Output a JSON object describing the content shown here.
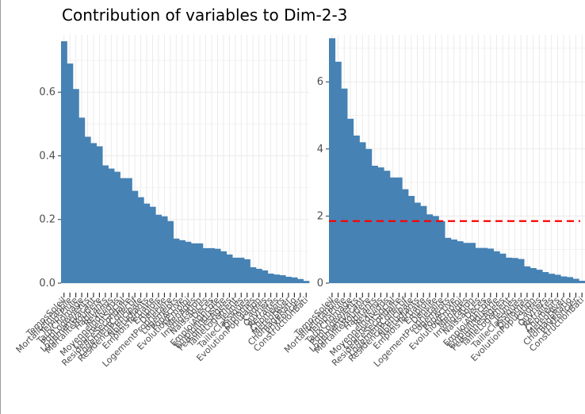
{
  "page": {
    "title": "Contribution of variables to Dim-2-3"
  },
  "colors": {
    "bar": "#4682B4",
    "grid": "#ebebeb",
    "reference_line": "#ff0000",
    "tick_text": "#4d4d4d"
  },
  "chart_data": [
    {
      "type": "bar",
      "title": "",
      "xlabel": "",
      "ylabel": "",
      "ylim": [
        0,
        0.78
      ],
      "y_ticks": [
        0.0,
        0.2,
        0.4,
        0.6
      ],
      "y_tick_labels": [
        "0.0",
        "0.2",
        "0.4",
        "0.6"
      ],
      "grid": true,
      "sorted": "descending",
      "categories": [
        "TempsSoleil",
        "MortaliteInfantile",
        "TempsPluie",
        "TauxChomage",
        "PopLogements",
        "LogementVacant",
        "MortaliteRoutiere",
        "Habitants",
        "Revenus",
        "MoyenneIndividus",
        "LogementSocial",
        "ResidenceSecondaire",
        "LogementCollectif",
        "ResidencePrincipale",
        "NbEtudiants",
        "EmploisTertiaire",
        "Emplois",
        "Densite",
        "LogementProprietaire",
        "Logements",
        "PopActive",
        "EvolutionEmploi",
        "Menages",
        "Immigration",
        "Naissances",
        "Deces",
        "EmploiAgricole",
        "EmploiIndustrie",
        "PersonnesAgees",
        "TailleLogement",
        "Jeunes",
        "TailleClassiques",
        "Diplomes",
        "EvolutionPopulation",
        "Cadres",
        "Ouvriers",
        "Retraites",
        "Chomeurs",
        "MeteoHiver",
        "ChomageRatio",
        "PrixFoncier",
        "ConstructionBati"
      ],
      "values": [
        0.76,
        0.69,
        0.61,
        0.52,
        0.46,
        0.44,
        0.43,
        0.37,
        0.36,
        0.35,
        0.33,
        0.33,
        0.29,
        0.27,
        0.25,
        0.24,
        0.215,
        0.21,
        0.195,
        0.14,
        0.135,
        0.13,
        0.125,
        0.125,
        0.11,
        0.11,
        0.108,
        0.1,
        0.09,
        0.08,
        0.08,
        0.075,
        0.05,
        0.045,
        0.04,
        0.03,
        0.027,
        0.025,
        0.02,
        0.018,
        0.013,
        0.007
      ]
    },
    {
      "type": "bar",
      "title": "",
      "xlabel": "",
      "ylabel": "",
      "ylim": [
        0,
        7.4
      ],
      "y_ticks": [
        0,
        2,
        4,
        6
      ],
      "y_tick_labels": [
        "0",
        "2",
        "4",
        "6"
      ],
      "grid": true,
      "sorted": "descending",
      "reference_line": 1.85,
      "categories": [
        "TempsSoleil",
        "MortaliteInfantile",
        "TempsPluie",
        "TauxChomage",
        "PopLogements",
        "LogementVacant",
        "MortaliteRoutiere",
        "Habitants",
        "Revenus",
        "MoyenneIndividus",
        "LogementSocial",
        "ResidenceSecondaire",
        "LogementCollectif",
        "ResidencePrincipale",
        "NbEtudiants",
        "EmploisTertiaire",
        "Emplois",
        "Densite",
        "LogementProprietaire",
        "Logements",
        "PopActive",
        "EvolutionEmploi",
        "Menages",
        "Immigration",
        "Naissances",
        "Deces",
        "EmploiAgricole",
        "EmploiIndustrie",
        "PersonnesAgees",
        "TailleLogement",
        "Jeunes",
        "TailleClassiques",
        "Diplomes",
        "EvolutionPopulation",
        "Cadres",
        "Ouvriers",
        "Retraites",
        "Chomeurs",
        "MeteoHiver",
        "ChomageRatio",
        "PrixFoncier",
        "ConstructionBati"
      ],
      "values": [
        7.3,
        6.6,
        5.8,
        4.9,
        4.4,
        4.2,
        4.0,
        3.5,
        3.45,
        3.35,
        3.15,
        3.15,
        2.8,
        2.6,
        2.4,
        2.3,
        2.05,
        2.0,
        1.85,
        1.35,
        1.3,
        1.25,
        1.2,
        1.2,
        1.05,
        1.05,
        1.03,
        0.95,
        0.88,
        0.76,
        0.75,
        0.72,
        0.5,
        0.45,
        0.4,
        0.33,
        0.28,
        0.25,
        0.2,
        0.18,
        0.13,
        0.07
      ]
    }
  ]
}
